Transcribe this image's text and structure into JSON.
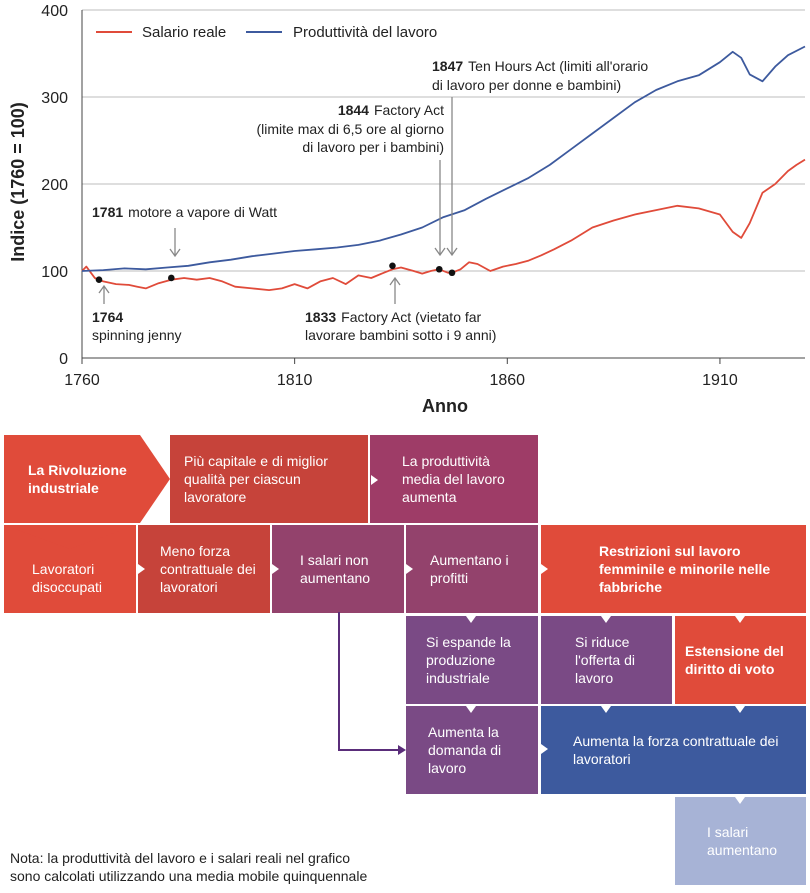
{
  "chart_data": {
    "type": "line",
    "xlabel": "Anno",
    "ylabel": "Indice (1760 = 100)",
    "xlim": [
      1760,
      1930
    ],
    "ylim": [
      0,
      400
    ],
    "xticks": [
      1760,
      1810,
      1860,
      1910
    ],
    "yticks": [
      0,
      100,
      200,
      300,
      400
    ],
    "legend": [
      "Salario reale",
      "Produttività del lavoro"
    ],
    "series": [
      {
        "name": "Salario reale",
        "color": "#e04b3a",
        "x": [
          1760,
          1761,
          1763,
          1765,
          1768,
          1771,
          1773,
          1775,
          1778,
          1781,
          1784,
          1787,
          1790,
          1793,
          1796,
          1800,
          1804,
          1807,
          1810,
          1813,
          1816,
          1819,
          1822,
          1825,
          1828,
          1831,
          1833,
          1835,
          1838,
          1840,
          1842,
          1844,
          1846,
          1847,
          1849,
          1851,
          1853,
          1856,
          1859,
          1862,
          1865,
          1868,
          1871,
          1875,
          1880,
          1885,
          1890,
          1895,
          1900,
          1905,
          1910,
          1913,
          1915,
          1917,
          1920,
          1923,
          1926,
          1928,
          1930
        ],
        "values": [
          100,
          105,
          92,
          88,
          85,
          84,
          82,
          80,
          86,
          90,
          92,
          90,
          92,
          88,
          82,
          80,
          78,
          80,
          85,
          80,
          88,
          92,
          85,
          95,
          92,
          98,
          102,
          104,
          100,
          97,
          100,
          102,
          98,
          98,
          102,
          110,
          108,
          100,
          105,
          108,
          112,
          118,
          125,
          135,
          150,
          158,
          165,
          170,
          175,
          172,
          165,
          145,
          138,
          155,
          190,
          200,
          215,
          222,
          228
        ]
      },
      {
        "name": "Produttività del lavoro",
        "color": "#3d5a9e",
        "x": [
          1760,
          1765,
          1770,
          1775,
          1780,
          1785,
          1790,
          1795,
          1800,
          1805,
          1810,
          1815,
          1820,
          1825,
          1830,
          1835,
          1840,
          1845,
          1850,
          1855,
          1860,
          1865,
          1870,
          1875,
          1880,
          1885,
          1890,
          1895,
          1900,
          1905,
          1910,
          1913,
          1915,
          1917,
          1920,
          1923,
          1926,
          1930
        ],
        "values": [
          100,
          101,
          103,
          102,
          104,
          106,
          110,
          113,
          117,
          120,
          123,
          125,
          127,
          130,
          135,
          142,
          150,
          162,
          170,
          183,
          195,
          207,
          222,
          240,
          258,
          276,
          294,
          308,
          318,
          325,
          340,
          352,
          345,
          326,
          318,
          335,
          348,
          358
        ]
      }
    ],
    "annotations": [
      {
        "year_label": "1764",
        "text": "spinning jenny",
        "x": 1764,
        "y": 90
      },
      {
        "year_label": "1781",
        "text": "motore a vapore di Watt",
        "x": 1781,
        "y": 92
      },
      {
        "year_label": "1833",
        "text": "Factory Act (vietato far",
        "text2": "lavorare bambini sotto i 9 anni)",
        "x": 1833,
        "y": 106
      },
      {
        "year_label": "1844",
        "text": "Factory Act",
        "text2": "(limite max di 6,5 ore al giorno",
        "text3": "di lavoro per i bambini)",
        "x": 1844,
        "y": 102
      },
      {
        "year_label": "1847",
        "text": "Ten Hours Act (limiti all'orario",
        "text2": "di lavoro per donne e bambini)",
        "x": 1847,
        "y": 98
      }
    ]
  },
  "diagram": {
    "rivoluzione": "La Rivoluzione industriale",
    "capitale": "Più capitale e di miglior qualità per ciascun lavoratore",
    "produttivita": "La produttività media del lavoro aumenta",
    "disoccupati": "Lavoratori disoccupati",
    "meno_forza": "Meno forza contrattuale dei lavoratori",
    "salari_non": "I salari non aumentano",
    "profitti": "Aumentano i profitti",
    "restrizioni": "Restrizioni sul lavoro femminile e minorile nelle fabbriche",
    "espande": "Si espande la produzione industriale",
    "riduce": "Si riduce l'offerta di lavoro",
    "voto": "Estensione del diritto di voto",
    "domanda": "Aumenta la domanda di lavoro",
    "forza": "Aumenta la forza contrattuale dei lavoratori",
    "salari": "I salari aumentano"
  },
  "note": {
    "line1": "Nota: la produttività del lavoro e i salari reali nel grafico",
    "line2": "sono calcolati utilizzando una media mobile quinquennale"
  }
}
